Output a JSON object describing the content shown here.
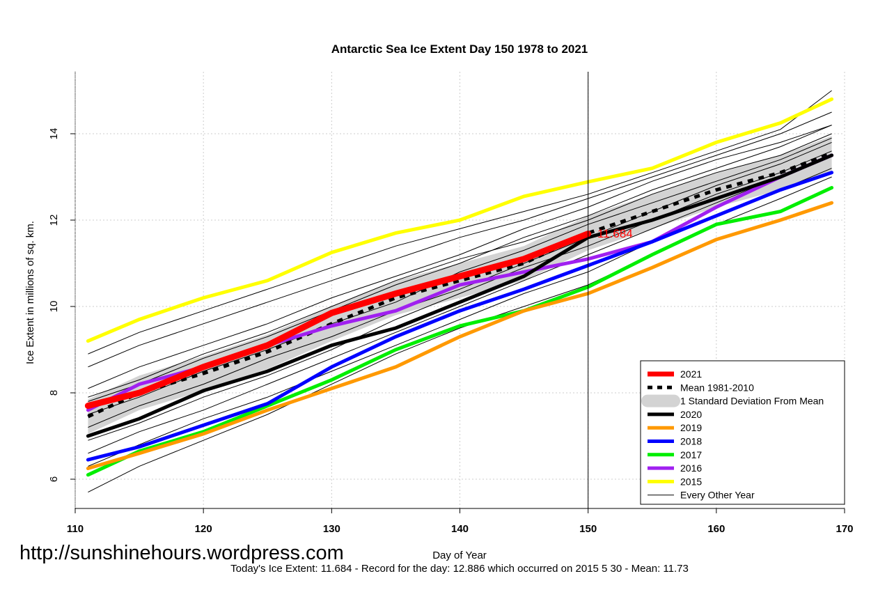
{
  "chart_data": {
    "type": "line",
    "title": "Antarctic Sea Ice Extent Day 150 1978 to 2021",
    "xlabel": "Day of Year",
    "ylabel": "Ice Extent in millions of sq. km.",
    "xlim": [
      110,
      170
    ],
    "ylim": [
      5.4,
      15.5
    ],
    "xticks": [
      110,
      120,
      130,
      140,
      150,
      160,
      170
    ],
    "yticks": [
      6,
      8,
      10,
      12,
      14
    ],
    "grid": true,
    "vline_day": 150,
    "annotation": "11.684",
    "legend_placement": "bottom-right",
    "days": [
      111,
      115,
      120,
      125,
      130,
      135,
      140,
      145,
      150,
      155,
      160,
      165,
      169
    ],
    "mean": {
      "name": "Mean 1981-2010",
      "values": [
        7.45,
        8.0,
        8.45,
        8.95,
        9.6,
        10.2,
        10.6,
        11.0,
        11.7,
        12.2,
        12.7,
        13.1,
        13.55
      ]
    },
    "sd_band": {
      "name": "1 Standard Deviation From Mean",
      "width": 0.4,
      "color": "#d3d3d3"
    },
    "series": [
      {
        "name": "2021",
        "color": "#ff0000",
        "values": [
          7.7,
          8.0,
          8.6,
          9.1,
          9.85,
          10.3,
          10.7,
          11.1,
          11.684
        ]
      },
      {
        "name": "2020",
        "color": "#000000",
        "values": [
          7.0,
          7.4,
          8.05,
          8.5,
          9.1,
          9.5,
          10.1,
          10.7,
          11.6,
          12.0,
          12.5,
          13.0,
          13.5
        ]
      },
      {
        "name": "2019",
        "color": "#ff9900",
        "values": [
          6.25,
          6.6,
          7.05,
          7.6,
          8.1,
          8.6,
          9.3,
          9.9,
          10.3,
          10.9,
          11.55,
          12.0,
          12.4
        ]
      },
      {
        "name": "2018",
        "color": "#0000ff",
        "values": [
          6.45,
          6.75,
          7.25,
          7.75,
          8.6,
          9.3,
          9.9,
          10.4,
          10.95,
          11.5,
          12.1,
          12.7,
          13.1
        ]
      },
      {
        "name": "2017",
        "color": "#00ee00",
        "values": [
          6.1,
          6.65,
          7.1,
          7.7,
          8.3,
          9.0,
          9.55,
          9.9,
          10.45,
          11.2,
          11.9,
          12.2,
          12.75
        ]
      },
      {
        "name": "2016",
        "color": "#a020f0",
        "values": [
          7.6,
          8.2,
          8.6,
          9.1,
          9.55,
          9.9,
          10.5,
          10.8,
          11.1,
          11.5,
          12.3,
          13.0,
          13.5
        ]
      },
      {
        "name": "2015",
        "color": "#ffff00",
        "values": [
          9.2,
          9.7,
          10.2,
          10.6,
          11.25,
          11.7,
          12.0,
          12.55,
          12.886,
          13.2,
          13.8,
          14.25,
          14.8
        ]
      }
    ],
    "other_years": {
      "name": "Every Other Year",
      "values": [
        [
          5.7,
          6.3,
          6.9,
          7.5,
          8.2,
          8.9,
          9.5,
          10.0,
          10.5,
          11.2,
          11.9,
          12.5,
          13.0
        ],
        [
          6.6,
          7.1,
          7.6,
          8.2,
          8.8,
          9.4,
          10.0,
          10.6,
          11.2,
          11.8,
          12.4,
          13.0,
          13.5
        ],
        [
          7.2,
          7.7,
          8.2,
          8.8,
          9.3,
          9.9,
          10.4,
          11.0,
          11.6,
          12.2,
          12.8,
          13.3,
          13.8
        ],
        [
          7.8,
          8.2,
          8.8,
          9.3,
          9.9,
          10.5,
          11.0,
          11.6,
          12.1,
          12.7,
          13.2,
          13.7,
          14.2
        ],
        [
          8.6,
          9.1,
          9.6,
          10.1,
          10.6,
          11.1,
          11.6,
          12.0,
          12.5,
          13.0,
          13.5,
          14.0,
          14.5
        ],
        [
          8.9,
          9.4,
          9.9,
          10.4,
          10.9,
          11.4,
          11.8,
          12.2,
          12.6,
          13.1,
          13.6,
          14.1,
          15.0
        ],
        [
          7.5,
          7.9,
          8.5,
          9.0,
          9.6,
          10.1,
          10.8,
          11.3,
          11.9,
          12.4,
          12.9,
          13.4,
          13.9
        ],
        [
          6.9,
          7.3,
          7.9,
          8.4,
          9.0,
          9.7,
          10.3,
          10.9,
          11.4,
          12.0,
          12.6,
          13.1,
          13.6
        ],
        [
          8.1,
          8.6,
          9.1,
          9.6,
          10.2,
          10.7,
          11.2,
          11.8,
          12.3,
          12.9,
          13.4,
          13.8,
          14.2
        ],
        [
          6.3,
          6.8,
          7.4,
          7.9,
          8.5,
          9.1,
          9.7,
          10.3,
          10.8,
          11.5,
          12.1,
          12.7,
          13.2
        ],
        [
          7.9,
          8.3,
          8.9,
          9.4,
          10.0,
          10.6,
          11.1,
          11.5,
          12.0,
          12.6,
          13.1,
          13.5,
          14.0
        ]
      ]
    }
  },
  "footer": {
    "watermark": "http://sunshinehours.wordpress.com",
    "summary": "Today's Ice Extent: 11.684  - Record for the day: 12.886 which occurred on 2015 5 30  - Mean: 11.73"
  }
}
